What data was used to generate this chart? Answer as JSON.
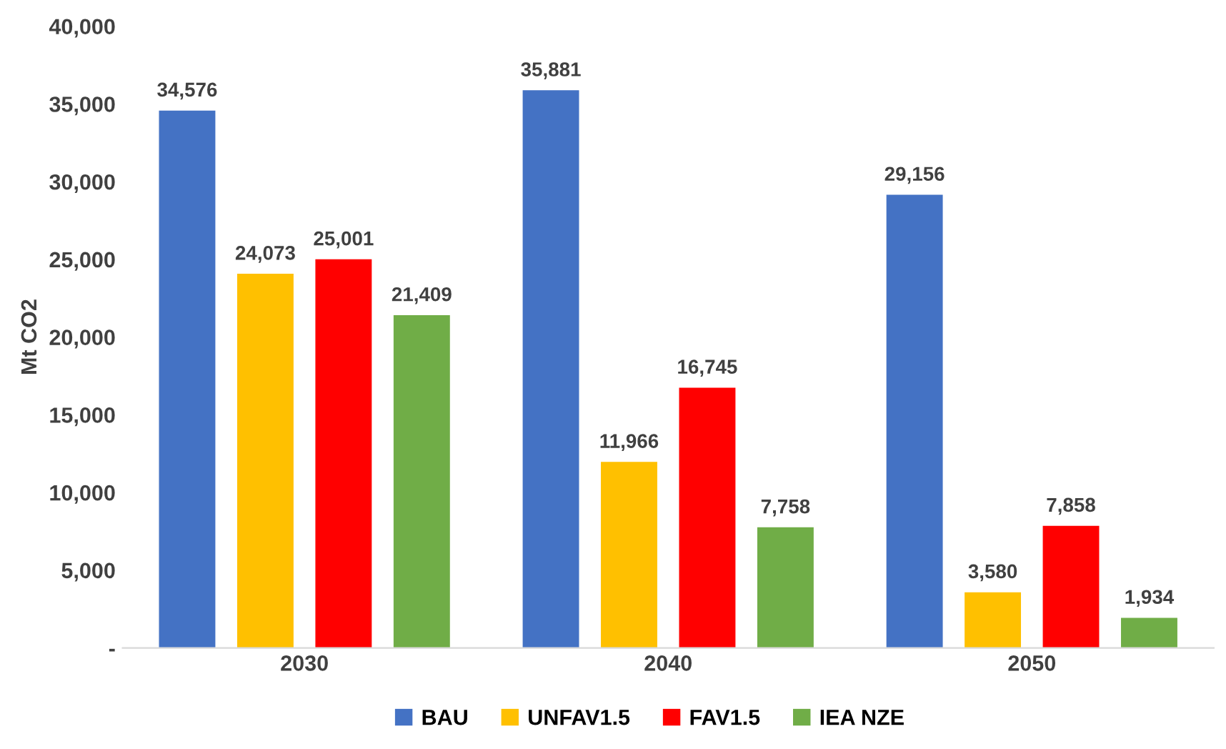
{
  "chart_data": {
    "type": "bar",
    "ylabel": "Mt CO2",
    "categories": [
      "2030",
      "2040",
      "2050"
    ],
    "series": [
      {
        "name": "BAU",
        "color": "#4472c4",
        "values": [
          34576,
          35881,
          29156
        ],
        "value_labels": [
          "34,576",
          "35,881",
          "29,156"
        ]
      },
      {
        "name": "UNFAV1.5",
        "color": "#ffc000",
        "values": [
          24073,
          11966,
          3580
        ],
        "value_labels": [
          "24,073",
          "11,966",
          "3,580"
        ]
      },
      {
        "name": "FAV1.5",
        "color": "#ff0000",
        "values": [
          25001,
          16745,
          7858
        ],
        "value_labels": [
          "25,001",
          "16,745",
          "7,858"
        ]
      },
      {
        "name": "IEA NZE",
        "color": "#70ad47",
        "values": [
          21409,
          7758,
          1934
        ],
        "value_labels": [
          "21,409",
          "7,758",
          "1,934"
        ]
      }
    ],
    "ylim": [
      0,
      40000
    ],
    "yticks": [
      {
        "value": 0,
        "label": "-"
      },
      {
        "value": 5000,
        "label": "5,000"
      },
      {
        "value": 10000,
        "label": "10,000"
      },
      {
        "value": 15000,
        "label": "15,000"
      },
      {
        "value": 20000,
        "label": "20,000"
      },
      {
        "value": 25000,
        "label": "25,000"
      },
      {
        "value": 30000,
        "label": "30,000"
      },
      {
        "value": 35000,
        "label": "35,000"
      },
      {
        "value": 40000,
        "label": "40,000"
      }
    ],
    "grid": false,
    "legend": "bottom"
  }
}
